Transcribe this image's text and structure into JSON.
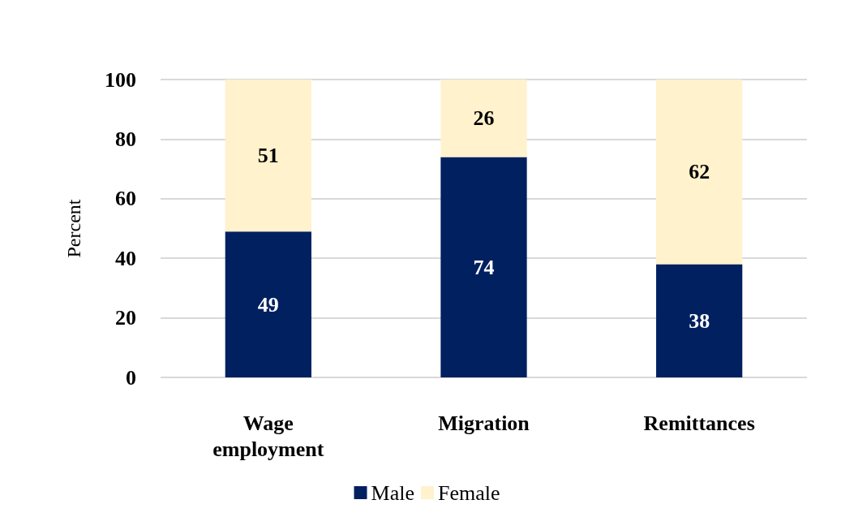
{
  "chart_data": {
    "type": "bar",
    "stacked": true,
    "ylabel": "Percent",
    "categories": [
      "Wage\nemployment",
      "Migration",
      "Remittances"
    ],
    "series": [
      {
        "name": "Male",
        "color": "#002060",
        "values": [
          49,
          74,
          38
        ]
      },
      {
        "name": "Female",
        "color": "#fff2cc",
        "values": [
          51,
          26,
          62
        ]
      }
    ],
    "ylim": [
      0,
      100
    ],
    "yticks": [
      0,
      20,
      40,
      60,
      80,
      100
    ],
    "grid": "y",
    "legend": "bottom",
    "data_labels": true
  }
}
